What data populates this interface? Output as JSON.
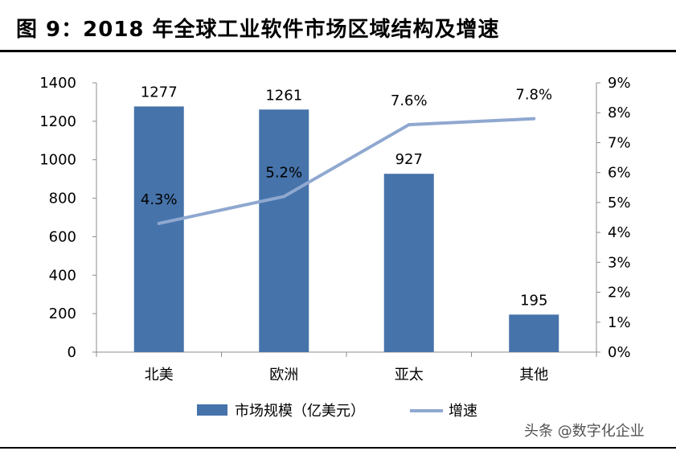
{
  "figure_title": "图 9：2018 年全球工业软件市场区域结构及增速",
  "watermark": "头条 @数字化企业",
  "colors": {
    "bar": "#4673AA",
    "line": "#8FA8D0",
    "axis": "#8C8C8C"
  },
  "chart_data": {
    "type": "bar",
    "categories": [
      "北美",
      "欧洲",
      "亚太",
      "其他"
    ],
    "series": [
      {
        "name": "市场规模（亿美元）",
        "type": "bar",
        "axis": "left",
        "values": [
          1277,
          1261,
          927,
          195
        ],
        "labels": [
          "1277",
          "1261",
          "927",
          "195"
        ]
      },
      {
        "name": "增速",
        "type": "line",
        "axis": "right",
        "values": [
          4.3,
          5.2,
          7.6,
          7.8
        ],
        "labels": [
          "4.3%",
          "5.2%",
          "7.6%",
          "7.8%"
        ]
      }
    ],
    "y_left": {
      "min": 0,
      "max": 1400,
      "ticks": [
        "0",
        "200",
        "400",
        "600",
        "800",
        "1000",
        "1200",
        "1400"
      ]
    },
    "y_right": {
      "min": 0,
      "max": 9,
      "ticks": [
        "0%",
        "1%",
        "2%",
        "3%",
        "4%",
        "5%",
        "6%",
        "7%",
        "8%",
        "9%"
      ]
    },
    "grid": false,
    "legend_position": "bottom"
  }
}
